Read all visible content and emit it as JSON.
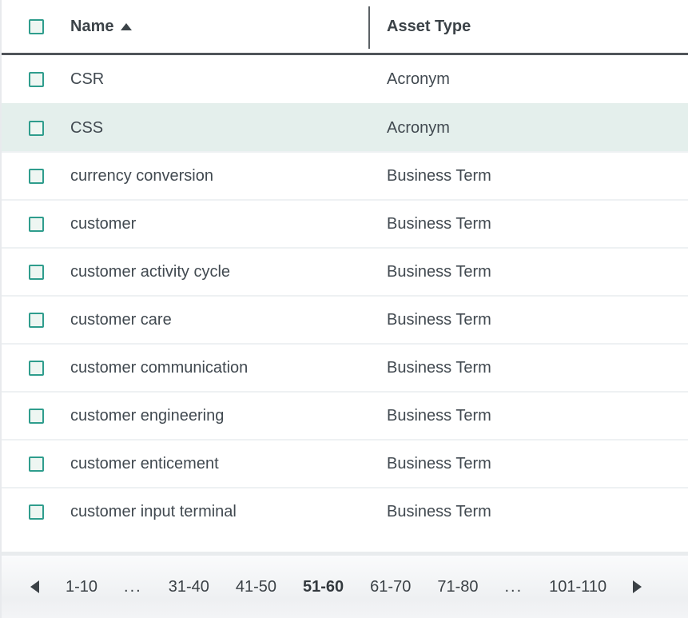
{
  "table": {
    "columns": [
      {
        "label": "Name",
        "sorted": "ascending"
      },
      {
        "label": "Asset Type",
        "sorted": "none"
      }
    ],
    "rows": [
      {
        "name": "CSR",
        "asset_type": "Acronym",
        "highlighted": false
      },
      {
        "name": "CSS",
        "asset_type": "Acronym",
        "highlighted": true
      },
      {
        "name": "currency conversion",
        "asset_type": "Business Term",
        "highlighted": false
      },
      {
        "name": "customer",
        "asset_type": "Business Term",
        "highlighted": false
      },
      {
        "name": "customer activity cycle",
        "asset_type": "Business Term",
        "highlighted": false
      },
      {
        "name": "customer care",
        "asset_type": "Business Term",
        "highlighted": false
      },
      {
        "name": "customer communication",
        "asset_type": "Business Term",
        "highlighted": false
      },
      {
        "name": "customer engineering",
        "asset_type": "Business Term",
        "highlighted": false
      },
      {
        "name": "customer enticement",
        "asset_type": "Business Term",
        "highlighted": false
      },
      {
        "name": "customer input terminal",
        "asset_type": "Business Term",
        "highlighted": false
      }
    ]
  },
  "pagination": {
    "items": [
      {
        "label": "1-10",
        "type": "page",
        "current": false
      },
      {
        "label": "...",
        "type": "ellipsis",
        "current": false
      },
      {
        "label": "31-40",
        "type": "page",
        "current": false
      },
      {
        "label": "41-50",
        "type": "page",
        "current": false
      },
      {
        "label": "51-60",
        "type": "page",
        "current": true
      },
      {
        "label": "61-70",
        "type": "page",
        "current": false
      },
      {
        "label": "71-80",
        "type": "page",
        "current": false
      },
      {
        "label": "...",
        "type": "ellipsis",
        "current": false
      },
      {
        "label": "101-110",
        "type": "page",
        "current": false
      }
    ]
  },
  "colors": {
    "accent_teal": "#2f9d8d",
    "checkbox_fill": "#eef6f2",
    "row_highlight_mint": "#e4efec",
    "text_dark": "#414950",
    "header_border_dark": "#50555a",
    "row_separator": "#eef1f3"
  }
}
